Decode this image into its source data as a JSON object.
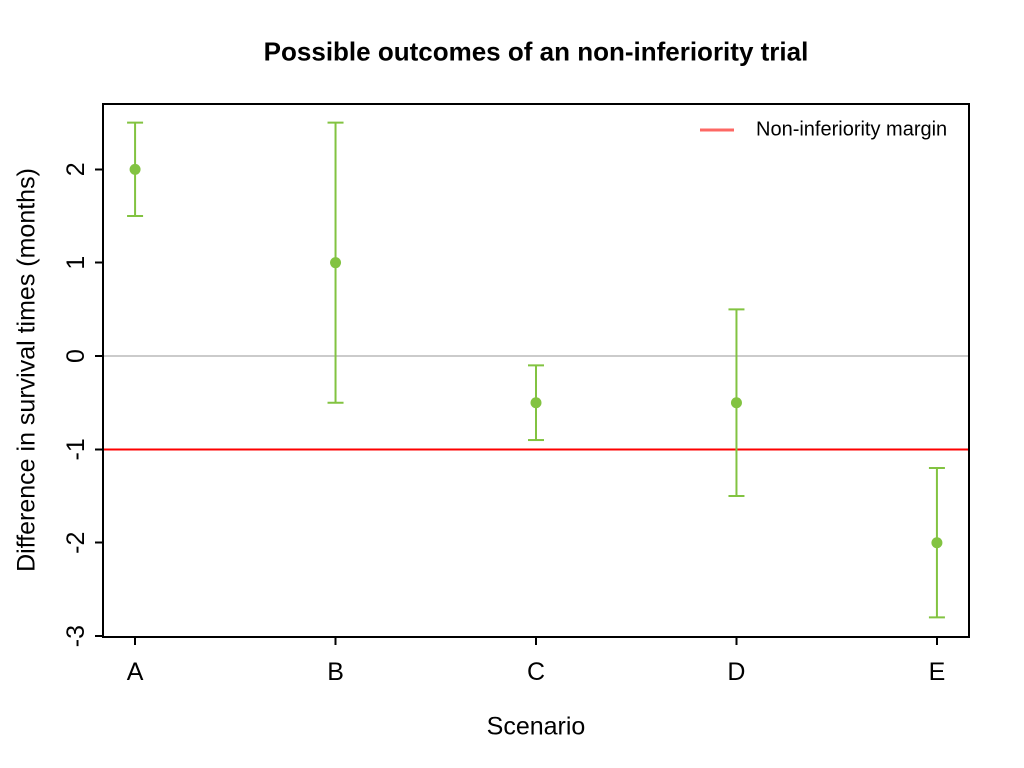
{
  "chart_data": {
    "type": "scatter",
    "subtype": "point-estimates-with-error-bars",
    "title": "Possible outcomes of an non-inferiority trial",
    "xlabel": "Scenario",
    "ylabel": "Difference in survival times (months)",
    "categories": [
      "A",
      "B",
      "C",
      "D",
      "E"
    ],
    "series": [
      {
        "name": "estimate",
        "values": [
          2,
          1,
          -0.5,
          -0.5,
          -2
        ]
      },
      {
        "name": "ci_lower",
        "values": [
          1.5,
          -0.5,
          -0.9,
          -1.5,
          -2.8
        ]
      },
      {
        "name": "ci_upper",
        "values": [
          2.5,
          2.5,
          -0.1,
          0.5,
          -1.2
        ]
      }
    ],
    "yticks": [
      2,
      1,
      0,
      -1,
      -2,
      -3
    ],
    "ylim": [
      -3.01,
      2.7
    ],
    "xlim": [
      0.84,
      5.16
    ],
    "grid": false,
    "reference_lines": [
      {
        "name": "zero-line",
        "value": 0,
        "color": "#cbcbcb"
      },
      {
        "name": "non-inferiority-margin-line",
        "value": -1,
        "color": "#fe0000"
      }
    ],
    "legend": {
      "position": "top-right",
      "label": "Non-inferiority margin",
      "swatch_color": "#fd6864"
    },
    "point_color": "#82c341",
    "axis_color": "#000000",
    "background_color": "#ffffff"
  }
}
